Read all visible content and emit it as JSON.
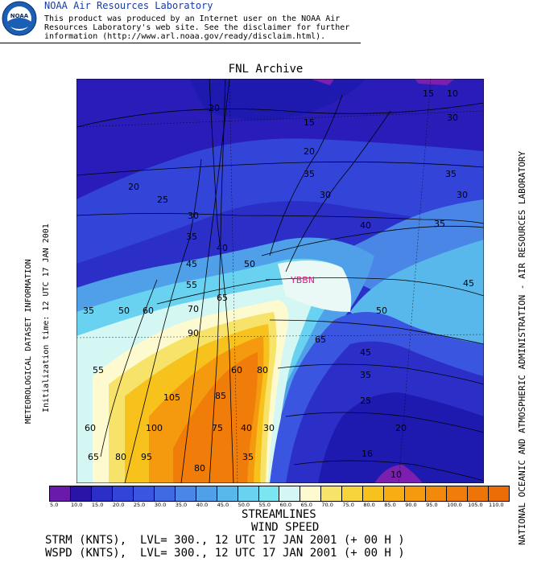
{
  "header": {
    "logo_text": "NOAA",
    "lab_title": "NOAA Air Resources Laboratory",
    "disclaimer": "This product was produced by an Internet user on the NOAA Air\nResources Laboratory's web site.  See the disclaimer for further\ninformation (http://www.arl.noaa.gov/ready/disclaim.html)."
  },
  "map": {
    "title": "FNL Archive",
    "station_label": "YBBN",
    "contour_labels": [
      "15",
      "10",
      "30",
      "15",
      "20",
      "20",
      "35",
      "20",
      "35",
      "30",
      "25",
      "30",
      "30",
      "40",
      "35",
      "35",
      "40",
      "45",
      "50",
      "45",
      "55",
      "65",
      "70",
      "35",
      "50",
      "60",
      "90",
      "50",
      "55",
      "65",
      "60",
      "80",
      "45",
      "105",
      "85",
      "35",
      "25",
      "60",
      "100",
      "75",
      "40",
      "30",
      "20",
      "65",
      "80",
      "95",
      "80",
      "35",
      "16",
      "10"
    ],
    "colors": {
      "deep_purple": "#7c1fb0",
      "dark_blue": "#1e1ab8",
      "blue": "#3a4fe0",
      "light_blue": "#58b8ec",
      "cyan": "#7be6f0",
      "yellow": "#f8e36a",
      "orange": "#f9a51a",
      "dark_orange": "#f07d0a",
      "station": "#e0188c"
    }
  },
  "left_text": {
    "line1": "METEOROLOGICAL DATASET INFORMATION",
    "line2": "Initialization time: 12 UTC 17 JAN 2001"
  },
  "right_text": "NATIONAL OCEANIC AND ATMOSPHERIC ADMINISTRATION - AIR RESOURCES LABORATORY",
  "colorbar": {
    "colors": [
      "#6a1aa8",
      "#2a14a8",
      "#2b2fc8",
      "#3344d8",
      "#3a55e0",
      "#3f6ae4",
      "#4a86e6",
      "#4fa0e8",
      "#58b8ec",
      "#68d2f0",
      "#7be6f0",
      "#d4f7f4",
      "#fdfad0",
      "#f8e36a",
      "#f7d43c",
      "#f7c21c",
      "#f8ae12",
      "#f59a0e",
      "#f3890b",
      "#f07d0a",
      "#ee7408",
      "#ec6c06"
    ],
    "labels": [
      "5.0",
      "10.0",
      "15.0",
      "20.0",
      "25.0",
      "30.0",
      "35.0",
      "40.0",
      "45.0",
      "50.0",
      "55.0",
      "60.0",
      "65.0",
      "70.0",
      "75.0",
      "80.0",
      "85.0",
      "90.0",
      "95.0",
      "100.0",
      "105.0",
      "110.0"
    ]
  },
  "footer": {
    "line1": "STREAMLINES",
    "line2": "WIND SPEED",
    "line3": "STRM (KNTS),  LVL= 300., 12 UTC 17 JAN 2001 (+ 00 H )",
    "line4": "WSPD (KNTS),  LVL= 300., 12 UTC 17 JAN 2001 (+ 00 H )"
  }
}
